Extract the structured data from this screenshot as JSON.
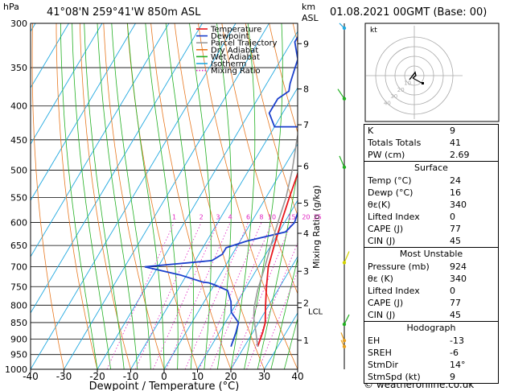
{
  "header": {
    "location": "41°08'N  259°41'W  850m  ASL",
    "datetime": "01.08.2021  00GMT  (Base: 00)",
    "hpa_label": "hPa",
    "km_label": "km",
    "asl_label": "ASL"
  },
  "footer": {
    "copyright": "© weatheronline.co.uk"
  },
  "chart_data": {
    "type": "line",
    "xlabel": "Dewpoint / Temperature (°C)",
    "ylabel": "hPa",
    "mixing_axis_label": "Mixing Ratio (g/kg)",
    "xlim": [
      -40,
      40
    ],
    "ylim": [
      1000,
      300
    ],
    "x_ticks": [
      -40,
      -30,
      -20,
      -10,
      0,
      10,
      20,
      30,
      40
    ],
    "pressure_ticks": [
      300,
      350,
      400,
      450,
      500,
      550,
      600,
      650,
      700,
      750,
      800,
      850,
      900,
      950,
      1000
    ],
    "km_ticks": [
      {
        "km": "9",
        "p": 322
      },
      {
        "km": "8",
        "p": 377
      },
      {
        "km": "7",
        "p": 427
      },
      {
        "km": "6",
        "p": 493
      },
      {
        "km": "5",
        "p": 561
      },
      {
        "km": "4",
        "p": 623
      },
      {
        "km": "3",
        "p": 711
      },
      {
        "km": "2",
        "p": 794
      },
      {
        "km": "1",
        "p": 904
      }
    ],
    "lcl": {
      "label": "LCL",
      "p": 807
    },
    "mixing_ratio_labels": [
      "1",
      "2",
      "3",
      "4",
      "6",
      "8",
      "10",
      "15",
      "20",
      "25"
    ],
    "legend": [
      {
        "name": "Temperature",
        "color": "#e8161c"
      },
      {
        "name": "Dewpoint",
        "color": "#1a3fcc"
      },
      {
        "name": "Parcel Trajectory",
        "color": "#999999"
      },
      {
        "name": "Dry Adiabat",
        "color": "#e87820"
      },
      {
        "name": "Wet Adiabat",
        "color": "#22b022"
      },
      {
        "name": "Isotherm",
        "color": "#22a9e0"
      },
      {
        "name": "Mixing Ratio",
        "color": "#e020c0"
      }
    ],
    "series": [
      {
        "name": "Temperature",
        "color": "#e8161c",
        "points": [
          [
            24,
            924
          ],
          [
            23,
            880
          ],
          [
            22,
            850
          ],
          [
            19,
            800
          ],
          [
            16,
            750
          ],
          [
            13,
            700
          ],
          [
            11,
            650
          ],
          [
            9,
            600
          ],
          [
            7,
            550
          ],
          [
            5,
            500
          ],
          [
            2,
            450
          ],
          [
            -1,
            400
          ],
          [
            -5,
            370
          ],
          [
            -10,
            330
          ],
          [
            -14,
            300
          ]
        ]
      },
      {
        "name": "Dewpoint",
        "color": "#1a3fcc",
        "points": [
          [
            16,
            924
          ],
          [
            15,
            880
          ],
          [
            14,
            850
          ],
          [
            10,
            820
          ],
          [
            8,
            790
          ],
          [
            5,
            760
          ],
          [
            0,
            745
          ],
          [
            -2,
            740
          ],
          [
            -4,
            738
          ],
          [
            -12,
            720
          ],
          [
            -24,
            700
          ],
          [
            -5,
            685
          ],
          [
            -3,
            670
          ],
          [
            -3,
            655
          ],
          [
            2,
            640
          ],
          [
            12,
            620
          ],
          [
            13,
            600
          ],
          [
            11,
            550
          ],
          [
            9,
            500
          ],
          [
            6,
            450
          ],
          [
            0,
            430
          ],
          [
            -10,
            430
          ],
          [
            -14,
            410
          ],
          [
            -14,
            390
          ],
          [
            -12,
            380
          ],
          [
            -13,
            370
          ],
          [
            -14,
            355
          ],
          [
            -15,
            340
          ],
          [
            -17,
            330
          ],
          [
            -19,
            320
          ],
          [
            -19,
            300
          ]
        ]
      },
      {
        "name": "Parcel Trajectory",
        "color": "#999999",
        "points": [
          [
            24,
            924
          ],
          [
            21,
            880
          ],
          [
            18,
            840
          ],
          [
            16,
            807
          ],
          [
            14,
            760
          ],
          [
            12,
            700
          ],
          [
            10,
            650
          ],
          [
            8,
            600
          ],
          [
            6,
            550
          ],
          [
            3,
            500
          ],
          [
            -1,
            450
          ],
          [
            -5,
            400
          ],
          [
            -9,
            360
          ],
          [
            -13,
            330
          ],
          [
            -17,
            300
          ]
        ]
      }
    ]
  },
  "hodograph": {
    "label": "kt",
    "rings": [
      "10",
      "20",
      "30",
      "40"
    ]
  },
  "indices": {
    "k": {
      "label": "K",
      "value": "9"
    },
    "tt": {
      "label": "Totals Totals",
      "value": "41"
    },
    "pw": {
      "label": "PW (cm)",
      "value": "2.69"
    }
  },
  "surface": {
    "title": "Surface",
    "rows": [
      {
        "label": "Temp (°C)",
        "value": "24"
      },
      {
        "label": "Dewp (°C)",
        "value": "16"
      },
      {
        "label": "θε(K)",
        "value": "340"
      },
      {
        "label": "Lifted Index",
        "value": "0"
      },
      {
        "label": "CAPE (J)",
        "value": "77"
      },
      {
        "label": "CIN (J)",
        "value": "45"
      }
    ]
  },
  "most_unstable": {
    "title": "Most Unstable",
    "rows": [
      {
        "label": "Pressure (mb)",
        "value": "924"
      },
      {
        "label": "θε (K)",
        "value": "340"
      },
      {
        "label": "Lifted Index",
        "value": "0"
      },
      {
        "label": "CAPE (J)",
        "value": "77"
      },
      {
        "label": "CIN (J)",
        "value": "45"
      }
    ]
  },
  "hodograph_table": {
    "title": "Hodograph",
    "rows": [
      {
        "label": "EH",
        "value": "-13"
      },
      {
        "label": "SREH",
        "value": "-6"
      },
      {
        "label": "StmDir",
        "value": "14°"
      },
      {
        "label": "StmSpd (kt)",
        "value": "9"
      }
    ]
  }
}
